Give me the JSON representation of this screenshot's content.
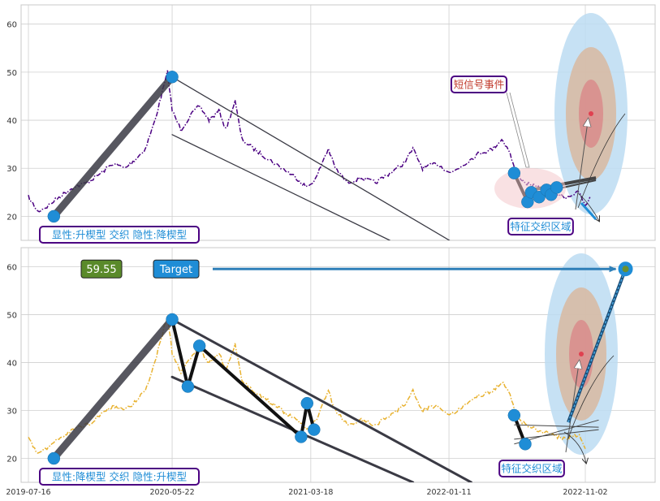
{
  "chart_data": [
    {
      "type": "line",
      "title": "",
      "xlabel": "",
      "ylabel": "",
      "ylim": [
        15,
        64
      ],
      "y_ticks": [
        20,
        30,
        40,
        50,
        60
      ],
      "grid": true,
      "series": [
        {
          "color": "#4b0082",
          "style": "dash-dot",
          "points": [
            [
              "2019-07-16",
              24
            ],
            [
              "2019-08-05",
              21
            ],
            [
              "2019-08-25",
              22
            ],
            [
              "2019-09-20",
              24
            ],
            [
              "2019-10-20",
              26
            ],
            [
              "2019-11-20",
              27
            ],
            [
              "2019-12-20",
              29
            ],
            [
              "2020-01-15",
              31
            ],
            [
              "2020-02-10",
              30
            ],
            [
              "2020-03-05",
              32
            ],
            [
              "2020-03-25",
              34
            ],
            [
              "2020-04-15",
              40
            ],
            [
              "2020-05-01",
              46
            ],
            [
              "2020-05-12",
              50
            ],
            [
              "2020-05-22",
              42
            ],
            [
              "2020-06-10",
              38
            ],
            [
              "2020-07-01",
              41
            ],
            [
              "2020-07-20",
              43
            ],
            [
              "2020-08-10",
              40
            ],
            [
              "2020-09-01",
              42
            ],
            [
              "2020-09-15",
              38
            ],
            [
              "2020-10-05",
              44
            ],
            [
              "2020-10-20",
              36
            ],
            [
              "2020-11-15",
              34
            ],
            [
              "2020-12-15",
              32
            ],
            [
              "2021-01-15",
              30
            ],
            [
              "2021-02-15",
              28
            ],
            [
              "2021-03-10",
              26
            ],
            [
              "2021-03-30",
              28
            ],
            [
              "2021-04-15",
              32
            ],
            [
              "2021-04-25",
              34
            ],
            [
              "2021-05-10",
              30
            ],
            [
              "2021-06-05",
              27
            ],
            [
              "2021-07-05",
              28
            ],
            [
              "2021-08-05",
              27
            ],
            [
              "2021-09-05",
              29
            ],
            [
              "2021-10-05",
              31
            ],
            [
              "2021-10-25",
              34
            ],
            [
              "2021-11-15",
              30
            ],
            [
              "2021-12-15",
              31
            ],
            [
              "2022-01-15",
              29
            ],
            [
              "2022-02-15",
              31
            ],
            [
              "2022-03-15",
              33
            ],
            [
              "2022-04-15",
              34
            ],
            [
              "2022-05-05",
              36
            ],
            [
              "2022-05-20",
              34
            ],
            [
              "2022-06-05",
              29
            ],
            [
              "2022-06-25",
              27
            ],
            [
              "2022-07-20",
              26
            ],
            [
              "2022-08-20",
              25
            ],
            [
              "2022-09-20",
              24
            ],
            [
              "2022-10-20",
              25
            ],
            [
              "2022-11-02",
              22
            ],
            [
              "2022-11-12",
              24
            ]
          ]
        }
      ],
      "line_fits": [
        {
          "points": [
            [
              "2019-09-09",
              20
            ],
            [
              "2020-05-22",
              49
            ]
          ],
          "width": "thick"
        },
        {
          "points": [
            [
              "2020-05-22",
              49
            ],
            [
              "2022-01-12",
              15
            ]
          ],
          "width": "thin"
        },
        {
          "points": [
            [
              "2020-05-22",
              37
            ],
            [
              "2021-09-05",
              15
            ]
          ],
          "width": "thin"
        }
      ],
      "pattern_points": [
        [
          "2019-09-09",
          20
        ],
        [
          "2020-05-22",
          49
        ],
        [
          "2022-06-01",
          29
        ],
        [
          "2022-06-30",
          23
        ],
        [
          "2022-07-08",
          25
        ],
        [
          "2022-07-25",
          24
        ],
        [
          "2022-08-10",
          25.5
        ],
        [
          "2022-08-20",
          24.5
        ],
        [
          "2022-09-01",
          26
        ]
      ],
      "annotations": {
        "bottom_left_label": "显性:升楔型 交织 隐性:降楔型",
        "signal_label": "短信号事件",
        "zone_label": "特征交织区域"
      }
    },
    {
      "type": "line",
      "title": "",
      "xlabel": "",
      "ylabel": "",
      "ylim": [
        15,
        64
      ],
      "y_ticks": [
        20,
        30,
        40,
        50,
        60
      ],
      "x_ticks": [
        "2019-07-16",
        "2020-05-22",
        "2021-03-18",
        "2022-01-11",
        "2022-11-02"
      ],
      "grid": true,
      "series": [
        {
          "color": "#e8b230",
          "style": "dash-dot",
          "points": [
            [
              "2019-07-16",
              24
            ],
            [
              "2019-08-05",
              21
            ],
            [
              "2019-08-25",
              22
            ],
            [
              "2019-09-20",
              24
            ],
            [
              "2019-10-20",
              26
            ],
            [
              "2019-11-20",
              27
            ],
            [
              "2019-12-20",
              29
            ],
            [
              "2020-01-15",
              31
            ],
            [
              "2020-02-10",
              30
            ],
            [
              "2020-03-05",
              32
            ],
            [
              "2020-03-25",
              34
            ],
            [
              "2020-04-15",
              40
            ],
            [
              "2020-05-01",
              46
            ],
            [
              "2020-05-12",
              50
            ],
            [
              "2020-05-22",
              42
            ],
            [
              "2020-06-10",
              38
            ],
            [
              "2020-07-01",
              41
            ],
            [
              "2020-07-20",
              43
            ],
            [
              "2020-08-10",
              40
            ],
            [
              "2020-09-01",
              42
            ],
            [
              "2020-09-15",
              38
            ],
            [
              "2020-10-05",
              44
            ],
            [
              "2020-10-20",
              36
            ],
            [
              "2020-11-15",
              34
            ],
            [
              "2020-12-15",
              32
            ],
            [
              "2021-01-15",
              30
            ],
            [
              "2021-02-15",
              28
            ],
            [
              "2021-03-10",
              26
            ],
            [
              "2021-03-30",
              28
            ],
            [
              "2021-04-15",
              32
            ],
            [
              "2021-04-25",
              34
            ],
            [
              "2021-05-10",
              30
            ],
            [
              "2021-06-05",
              27
            ],
            [
              "2021-07-05",
              28
            ],
            [
              "2021-08-05",
              27
            ],
            [
              "2021-09-05",
              29
            ],
            [
              "2021-10-05",
              31
            ],
            [
              "2021-10-25",
              34
            ],
            [
              "2021-11-15",
              30
            ],
            [
              "2021-12-15",
              31
            ],
            [
              "2022-01-15",
              29
            ],
            [
              "2022-02-15",
              31
            ],
            [
              "2022-03-15",
              33
            ],
            [
              "2022-04-15",
              34
            ],
            [
              "2022-05-05",
              36
            ],
            [
              "2022-05-20",
              34
            ],
            [
              "2022-06-05",
              29
            ],
            [
              "2022-06-25",
              27
            ],
            [
              "2022-07-20",
              26
            ],
            [
              "2022-08-20",
              25
            ],
            [
              "2022-09-20",
              24
            ],
            [
              "2022-10-20",
              25
            ],
            [
              "2022-11-02",
              22
            ]
          ]
        }
      ],
      "line_fits": [
        {
          "points": [
            [
              "2019-09-09",
              20
            ],
            [
              "2020-05-22",
              49
            ]
          ],
          "width": "thick"
        },
        {
          "points": [
            [
              "2020-05-22",
              49
            ],
            [
              "2022-02-28",
              15
            ]
          ],
          "width": "medium"
        },
        {
          "points": [
            [
              "2020-05-22",
              37
            ],
            [
              "2021-10-25",
              15
            ]
          ],
          "width": "medium"
        }
      ],
      "pattern_points": [
        [
          "2019-09-09",
          20
        ],
        [
          "2020-05-22",
          49
        ],
        [
          "2020-06-25",
          35
        ],
        [
          "2020-07-20",
          43.5
        ],
        [
          "2021-02-25",
          24.5
        ],
        [
          "2021-03-10",
          31.5
        ],
        [
          "2021-03-25",
          26
        ],
        [
          "2022-06-01",
          29
        ],
        [
          "2022-06-25",
          23
        ]
      ],
      "target": {
        "date": "2023-01-28",
        "value": 59.55,
        "label": "Target",
        "value_label": "59.55"
      },
      "annotations": {
        "bottom_left_label": "显性:降楔型 交织 隐性:升楔型",
        "zone_label": "特征交织区域"
      }
    }
  ],
  "colors": {
    "point": "#1f8dd6",
    "target_arrow": "#2e7fb8",
    "label_border": "#4b0082",
    "label_text": "#1f8dd6",
    "signal_text": "#c0392b",
    "value_badge": "#5a8a2a",
    "target_badge": "#1f8dd6"
  }
}
